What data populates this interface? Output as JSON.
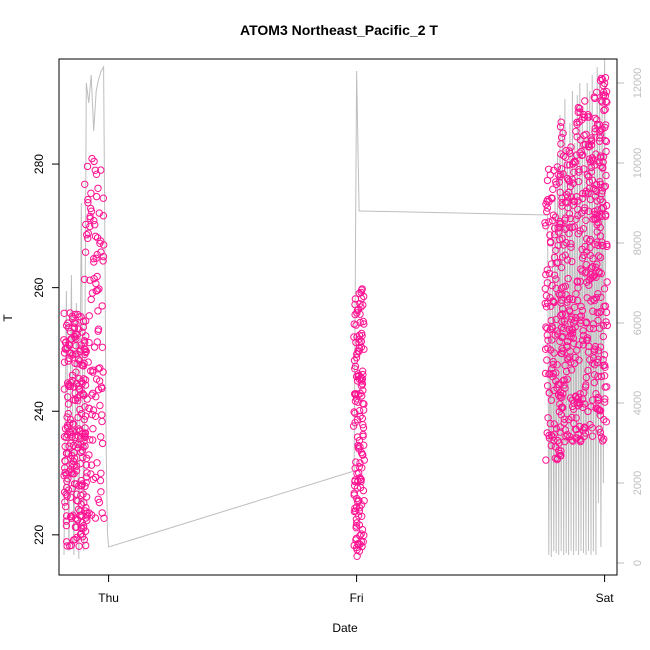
{
  "chart_data": {
    "type": "scatter",
    "title": "ATOM3 Northeast_Pacific_2 T",
    "xlabel": "Date",
    "ylabel": "T",
    "x_ticks": [
      "Thu",
      "Fri",
      "Sat"
    ],
    "x_tick_positions": [
      0,
      1,
      2
    ],
    "xlim": [
      -0.2,
      2.05
    ],
    "ylim": [
      213.5,
      297
    ],
    "y_ticks": [
      220,
      240,
      260,
      280
    ],
    "y2lim": [
      -300,
      12600
    ],
    "y2_ticks": [
      0,
      2000,
      4000,
      6000,
      8000,
      10000,
      12000
    ],
    "grid": false,
    "colors": {
      "points": "#ff1493",
      "line": "#bebebe",
      "axis_right": "#bebebe",
      "axis": "#000000"
    },
    "series": [
      {
        "kind": "points",
        "clusters": [
          {
            "x": [
              -0.18,
              -0.09
            ],
            "y": [
              218,
              256
            ],
            "count": 230
          },
          {
            "x": [
              -0.1,
              -0.02
            ],
            "y": [
              222,
              281
            ],
            "count": 120
          },
          {
            "x": [
              0.99,
              1.03
            ],
            "y": [
              216.5,
              261
            ],
            "count": 150
          },
          {
            "x": [
              1.76,
              1.83
            ],
            "y": [
              232,
              281
            ],
            "count": 140
          },
          {
            "x": [
              1.82,
              1.89
            ],
            "y": [
              235,
              287
            ],
            "count": 160
          },
          {
            "x": [
              1.89,
              1.96
            ],
            "y": [
              235,
              291
            ],
            "count": 160
          },
          {
            "x": [
              1.96,
              2.01
            ],
            "y": [
              235,
              294
            ],
            "count": 150
          }
        ]
      },
      {
        "kind": "line",
        "axis": "right",
        "x": [
          -0.18,
          -0.17,
          -0.16,
          -0.15,
          -0.14,
          -0.13,
          -0.12,
          -0.11,
          -0.1,
          -0.09,
          -0.08,
          -0.07,
          -0.06,
          -0.05,
          -0.04,
          -0.03,
          -0.02,
          -0.015,
          -0.01,
          -0.005,
          0.0,
          0.99,
          1.0,
          1.01,
          1.01,
          1.02,
          1.77,
          1.775,
          1.78,
          1.785,
          1.79,
          1.795,
          1.8,
          1.805,
          1.81,
          1.815,
          1.82,
          1.825,
          1.83,
          1.835,
          1.84,
          1.845,
          1.85,
          1.855,
          1.86,
          1.865,
          1.87,
          1.875,
          1.88,
          1.885,
          1.89,
          1.895,
          1.9,
          1.905,
          1.91,
          1.915,
          1.92,
          1.925,
          1.93,
          1.935,
          1.94,
          1.945,
          1.95,
          1.955,
          1.96,
          1.965,
          1.97,
          1.975,
          1.98,
          1.985,
          1.99,
          1.995,
          2.0,
          2.005
        ],
        "y": [
          200,
          6800,
          300,
          7200,
          200,
          6500,
          100,
          9000,
          300,
          12000,
          11500,
          12200,
          10800,
          11800,
          12100,
          12300,
          12400,
          8000,
          3000,
          800,
          400,
          2300,
          12300,
          8800,
          8800,
          8800,
          8700,
          200,
          7200,
          150,
          8500,
          300,
          9200,
          250,
          10200,
          200,
          11200,
          300,
          10800,
          200,
          11600,
          250,
          10000,
          200,
          11000,
          300,
          11800,
          200,
          10500,
          300,
          11700,
          200,
          12000,
          300,
          11400,
          250,
          10600,
          200,
          12000,
          300,
          11800,
          200,
          12200,
          300,
          11000,
          200,
          12400,
          1500,
          12200,
          400,
          11800,
          2000,
          12600,
          6000
        ]
      }
    ]
  }
}
